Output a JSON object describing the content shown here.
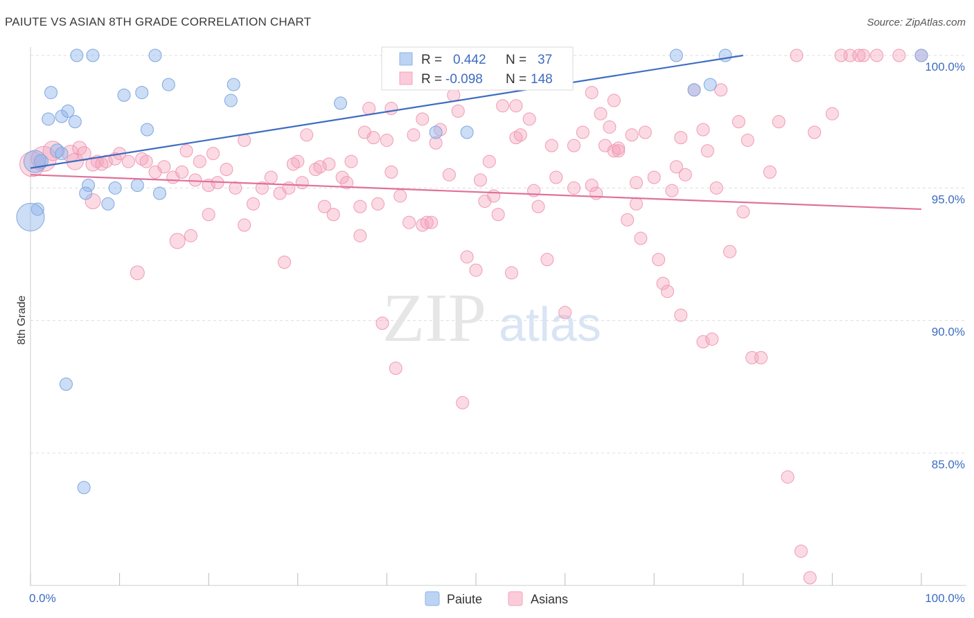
{
  "title": "PAIUTE VS ASIAN 8TH GRADE CORRELATION CHART",
  "source": "Source: ZipAtlas.com",
  "chart_data": {
    "type": "scatter",
    "ylabel": "8th Grade",
    "xlim": [
      0,
      100
    ],
    "ylim": [
      80.3,
      101.2
    ],
    "x_tick_labels": [
      "0.0%",
      "100.0%"
    ],
    "y_ticks": [
      85,
      90,
      95,
      100
    ],
    "y_tick_labels": [
      "85.0%",
      "90.0%",
      "95.0%",
      "100.0%"
    ],
    "grid": true,
    "watermark": {
      "zip": "ZIP",
      "atlas": "atlas"
    },
    "legend_stats": [
      {
        "r_label": "R =",
        "r": "0.442",
        "n_label": "N =",
        "n": "37"
      },
      {
        "r_label": "R =",
        "r": "-0.098",
        "n_label": "N =",
        "n": "148"
      }
    ],
    "series": [
      {
        "name": "Paiute",
        "color": "#8db3ea",
        "line_color": "#3d6cc0",
        "trend": [
          [
            0,
            95.75
          ],
          [
            80,
            100.0
          ]
        ],
        "points": [
          [
            0.5,
            96.0,
            16
          ],
          [
            0.8,
            94.2,
            9
          ],
          [
            0.0,
            93.9,
            20
          ],
          [
            1.2,
            96.0,
            10
          ],
          [
            2.0,
            97.6,
            9
          ],
          [
            2.3,
            98.6,
            9
          ],
          [
            3.0,
            96.4,
            10
          ],
          [
            3.5,
            96.3,
            9
          ],
          [
            3.5,
            97.7,
            9
          ],
          [
            4.2,
            97.9,
            9
          ],
          [
            5.0,
            97.5,
            9
          ],
          [
            5.2,
            100.0,
            9
          ],
          [
            7.0,
            100.0,
            9
          ],
          [
            6.5,
            95.1,
            9
          ],
          [
            6.2,
            94.8,
            9
          ],
          [
            8.7,
            94.4,
            9
          ],
          [
            9.5,
            95.0,
            9
          ],
          [
            10.5,
            98.5,
            9
          ],
          [
            12.0,
            95.1,
            9
          ],
          [
            12.5,
            98.6,
            9
          ],
          [
            13.1,
            97.2,
            9
          ],
          [
            14.0,
            100.0,
            9
          ],
          [
            14.5,
            94.8,
            9
          ],
          [
            15.5,
            98.9,
            9
          ],
          [
            22.5,
            98.3,
            9
          ],
          [
            22.8,
            98.9,
            9
          ],
          [
            34.8,
            98.2,
            9
          ],
          [
            45.0,
            100.0,
            9
          ],
          [
            45.5,
            97.1,
            9
          ],
          [
            49.0,
            97.1,
            9
          ],
          [
            4.0,
            87.6,
            9
          ],
          [
            6.0,
            83.7,
            9
          ],
          [
            72.5,
            100.0,
            9
          ],
          [
            74.5,
            98.7,
            9
          ],
          [
            76.3,
            98.9,
            9
          ],
          [
            78.0,
            100.0,
            9
          ],
          [
            100.0,
            100.0,
            9
          ]
        ]
      },
      {
        "name": "Asians",
        "color": "#f5a3bc",
        "line_color": "#e0709a",
        "trend": [
          [
            0,
            95.5
          ],
          [
            100,
            94.2
          ]
        ],
        "points": [
          [
            0.2,
            95.9,
            18
          ],
          [
            1.5,
            96.1,
            18
          ],
          [
            2.5,
            96.4,
            14
          ],
          [
            4.5,
            96.3,
            12
          ],
          [
            5.0,
            96.0,
            12
          ],
          [
            5.5,
            96.5,
            10
          ],
          [
            6.0,
            96.3,
            10
          ],
          [
            7.0,
            95.9,
            10
          ],
          [
            7.5,
            96.0,
            9
          ],
          [
            8.0,
            95.9,
            9
          ],
          [
            8.5,
            96.0,
            9
          ],
          [
            9.5,
            96.1,
            9
          ],
          [
            10.0,
            96.3,
            9
          ],
          [
            11.0,
            96.0,
            9
          ],
          [
            12.5,
            96.1,
            9
          ],
          [
            13.0,
            96.0,
            9
          ],
          [
            14.0,
            95.6,
            9
          ],
          [
            15.0,
            95.8,
            9
          ],
          [
            16.0,
            95.4,
            9
          ],
          [
            17.0,
            95.6,
            9
          ],
          [
            17.5,
            96.4,
            9
          ],
          [
            18.5,
            95.3,
            9
          ],
          [
            19.0,
            96.0,
            9
          ],
          [
            20.0,
            95.1,
            9
          ],
          [
            20.5,
            96.3,
            9
          ],
          [
            21.0,
            95.2,
            9
          ],
          [
            22.0,
            95.7,
            9
          ],
          [
            23.0,
            95.0,
            9
          ],
          [
            24.0,
            96.8,
            9
          ],
          [
            25.0,
            94.4,
            9
          ],
          [
            26.0,
            95.0,
            9
          ],
          [
            27.0,
            95.4,
            9
          ],
          [
            28.0,
            94.8,
            9
          ],
          [
            29.0,
            95.0,
            9
          ],
          [
            30.0,
            96.0,
            9
          ],
          [
            30.5,
            95.2,
            9
          ],
          [
            31.0,
            97.0,
            9
          ],
          [
            32.0,
            95.7,
            9
          ],
          [
            33.0,
            94.3,
            9
          ],
          [
            33.5,
            95.9,
            9
          ],
          [
            34.0,
            94.0,
            9
          ],
          [
            35.0,
            95.4,
            9
          ],
          [
            36.0,
            96.0,
            9
          ],
          [
            37.0,
            94.3,
            9
          ],
          [
            37.5,
            97.1,
            9
          ],
          [
            38.5,
            96.9,
            9
          ],
          [
            39.0,
            94.4,
            9
          ],
          [
            40.0,
            96.8,
            9
          ],
          [
            40.5,
            95.6,
            9
          ],
          [
            41.5,
            94.7,
            9
          ],
          [
            42.5,
            93.7,
            9
          ],
          [
            43.0,
            97.0,
            9
          ],
          [
            44.0,
            93.6,
            9
          ],
          [
            44.5,
            93.7,
            9
          ],
          [
            45.0,
            93.7,
            9
          ],
          [
            45.5,
            96.7,
            9
          ],
          [
            46.0,
            97.2,
            9
          ],
          [
            47.0,
            95.5,
            9
          ],
          [
            47.5,
            98.5,
            9
          ],
          [
            48.0,
            97.9,
            9
          ],
          [
            49.0,
            92.4,
            9
          ],
          [
            50.0,
            91.9,
            9
          ],
          [
            50.5,
            95.3,
            9
          ],
          [
            51.0,
            94.5,
            9
          ],
          [
            52.0,
            94.7,
            9
          ],
          [
            52.5,
            94.0,
            9
          ],
          [
            53.0,
            98.1,
            9
          ],
          [
            54.0,
            91.8,
            9
          ],
          [
            54.5,
            96.9,
            9
          ],
          [
            55.0,
            97.0,
            9
          ],
          [
            56.0,
            97.6,
            9
          ],
          [
            56.5,
            94.9,
            9
          ],
          [
            57.0,
            94.3,
            9
          ],
          [
            58.0,
            92.3,
            9
          ],
          [
            58.5,
            96.6,
            9
          ],
          [
            59.0,
            95.4,
            9
          ],
          [
            60.0,
            90.3,
            9
          ],
          [
            61.0,
            95.0,
            9
          ],
          [
            62.0,
            97.1,
            9
          ],
          [
            63.0,
            95.1,
            9
          ],
          [
            63.5,
            94.8,
            9
          ],
          [
            64.0,
            97.8,
            9
          ],
          [
            64.5,
            96.6,
            9
          ],
          [
            65.0,
            97.3,
            9
          ],
          [
            65.5,
            96.4,
            9
          ],
          [
            66.0,
            96.4,
            9
          ],
          [
            67.0,
            93.8,
            9
          ],
          [
            68.0,
            94.4,
            9
          ],
          [
            68.5,
            93.1,
            9
          ],
          [
            69.0,
            97.1,
            9
          ],
          [
            70.0,
            95.4,
            9
          ],
          [
            70.5,
            92.3,
            9
          ],
          [
            71.0,
            91.4,
            9
          ],
          [
            71.5,
            91.1,
            9
          ],
          [
            72.0,
            94.9,
            9
          ],
          [
            72.5,
            95.8,
            9
          ],
          [
            73.0,
            90.2,
            9
          ],
          [
            73.5,
            95.5,
            9
          ],
          [
            74.5,
            98.7,
            9
          ],
          [
            75.5,
            89.2,
            9
          ],
          [
            76.0,
            96.4,
            9
          ],
          [
            76.5,
            89.3,
            9
          ],
          [
            77.0,
            95.0,
            9
          ],
          [
            77.5,
            98.7,
            9
          ],
          [
            78.5,
            92.6,
            9
          ],
          [
            79.5,
            97.5,
            9
          ],
          [
            80.5,
            96.8,
            9
          ],
          [
            81.0,
            88.6,
            9
          ],
          [
            82.0,
            88.6,
            9
          ],
          [
            83.0,
            95.6,
            9
          ],
          [
            84.0,
            97.5,
            9
          ],
          [
            85.0,
            84.1,
            9
          ],
          [
            86.0,
            100.0,
            9
          ],
          [
            88.0,
            97.1,
            9
          ],
          [
            90.0,
            97.8,
            9
          ],
          [
            91.0,
            100.0,
            9
          ],
          [
            92.0,
            100.0,
            9
          ],
          [
            93.0,
            100.0,
            9
          ],
          [
            95.0,
            100.0,
            9
          ],
          [
            100.0,
            100.0,
            9
          ],
          [
            39.5,
            89.9,
            9
          ],
          [
            41.0,
            88.2,
            9
          ],
          [
            48.5,
            86.9,
            9
          ],
          [
            86.5,
            81.3,
            9
          ],
          [
            87.5,
            80.3,
            9
          ],
          [
            16.5,
            93.0,
            11
          ],
          [
            12.0,
            91.8,
            10
          ],
          [
            7.0,
            94.5,
            11
          ],
          [
            18.0,
            93.2,
            9
          ],
          [
            20.0,
            94.0,
            9
          ],
          [
            24.0,
            93.6,
            9
          ],
          [
            28.5,
            92.2,
            9
          ],
          [
            37.0,
            93.2,
            9
          ],
          [
            61.0,
            96.6,
            9
          ],
          [
            63.0,
            98.6,
            9
          ],
          [
            65.5,
            98.3,
            9
          ],
          [
            40.5,
            98.0,
            9
          ],
          [
            44.0,
            97.6,
            9
          ],
          [
            51.5,
            96.0,
            9
          ],
          [
            54.5,
            98.1,
            9
          ],
          [
            66.0,
            96.5,
            9
          ],
          [
            67.5,
            97.0,
            9
          ],
          [
            29.5,
            95.9,
            9
          ],
          [
            32.5,
            95.8,
            9
          ],
          [
            35.5,
            95.2,
            9
          ],
          [
            68.0,
            95.2,
            9
          ],
          [
            73.0,
            96.9,
            9
          ],
          [
            75.5,
            97.2,
            9
          ],
          [
            80.0,
            94.1,
            9
          ],
          [
            93.5,
            100.0,
            9
          ],
          [
            97.5,
            100.0,
            9
          ],
          [
            38.0,
            98.0,
            9
          ]
        ]
      }
    ]
  }
}
